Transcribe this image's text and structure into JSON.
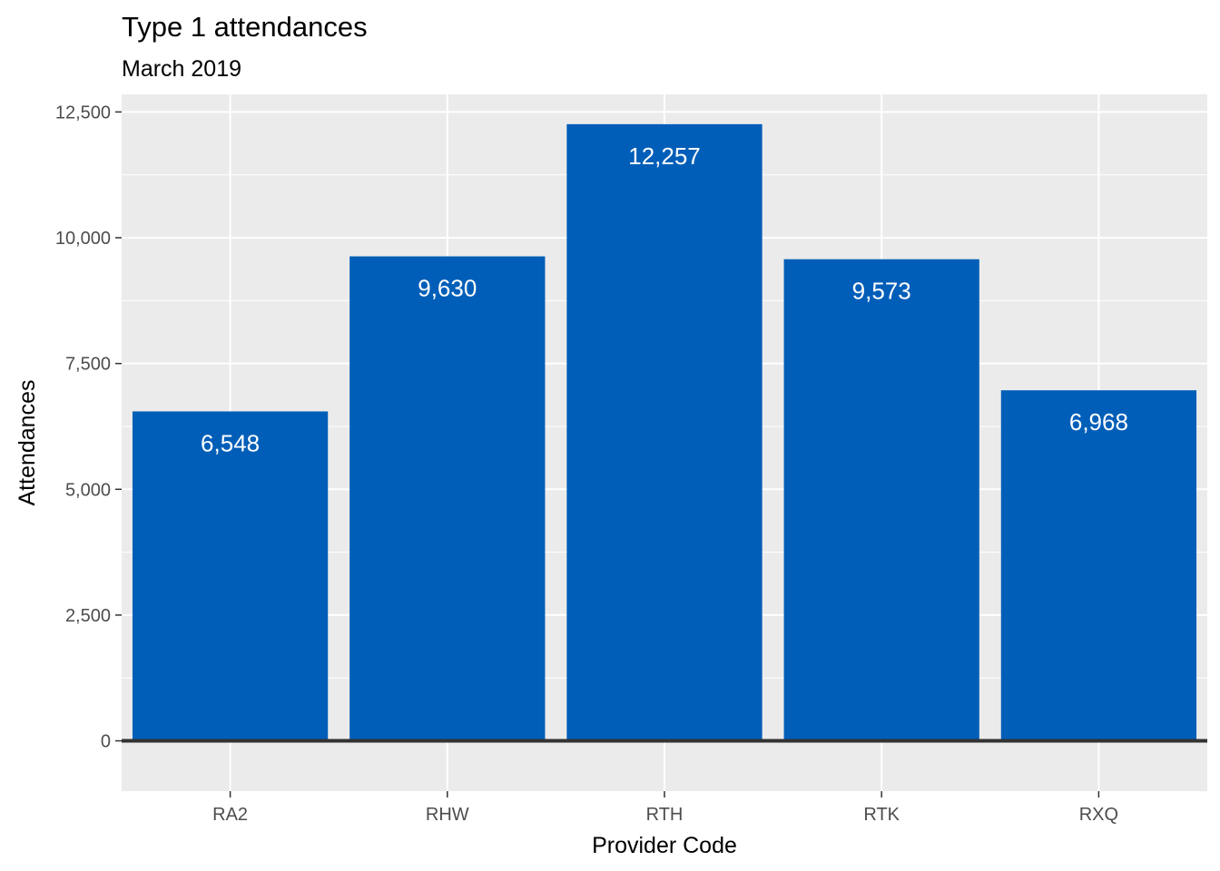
{
  "chart_data": {
    "type": "bar",
    "title": "Type 1 attendances",
    "subtitle": "March 2019",
    "xlabel": "Provider Code",
    "ylabel": "Attendances",
    "categories": [
      "RA2",
      "RHW",
      "RTH",
      "RTK",
      "RXQ"
    ],
    "values": [
      6548,
      9630,
      12257,
      9573,
      6968
    ],
    "value_labels": [
      "6,548",
      "9,630",
      "12,257",
      "9,573",
      "6,968"
    ],
    "ylim": [
      -1000,
      12850
    ],
    "yticks": [
      0,
      2500,
      5000,
      7500,
      10000,
      12500
    ],
    "ytick_labels": [
      "0",
      "2,500",
      "5,000",
      "7,500",
      "10,000",
      "12,500"
    ],
    "grid": true,
    "bar_color": "#005EB8",
    "panel_background": "#EBEBEB",
    "grid_color": "#FFFFFF",
    "zero_line_color": "#333333"
  }
}
